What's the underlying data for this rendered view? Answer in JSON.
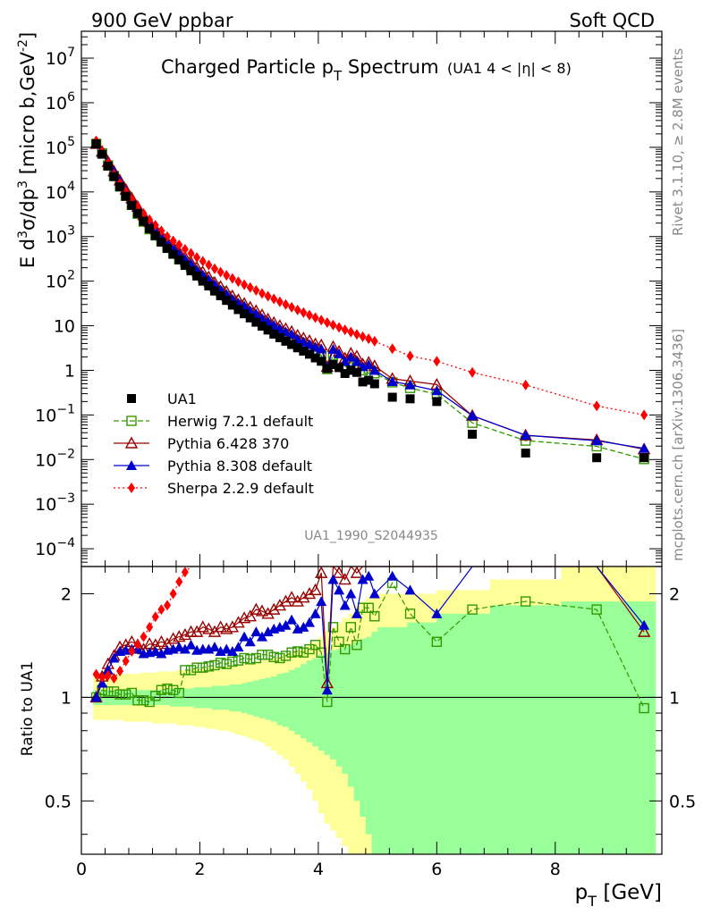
{
  "header": {
    "left": "900 GeV ppbar",
    "right": "Soft QCD",
    "side_top": "Rivet 3.1.10, ≥ 2.8M events",
    "side_bottom": "mcplots.cern.ch [arXiv:1306.3436]"
  },
  "chart_data": [
    {
      "type": "scatter",
      "title": "Charged Particle p_T Spectrum",
      "title_main": "Charged Particle p",
      "title_sub": "T",
      "title_tail": " Spectrum",
      "title_cut": "(UA1   4 < |η| < 8)",
      "analysis_label": "UA1_1990_S2044935",
      "ylabel": "E d³σ/dp³ [micro b,GeV⁻²]",
      "ylabel_parts": {
        "a": "E d",
        "b": "3",
        "c": "σ/dp",
        "d": "3",
        "e": " [micro b,GeV",
        "f": "-2",
        "g": "]"
      },
      "yscale": "log",
      "ylim": [
        4e-05,
        40000000
      ],
      "xlim": [
        0,
        9.8
      ],
      "ytick_labels": [
        {
          "v": 10000000.0,
          "base": "10",
          "exp": "7"
        },
        {
          "v": 1000000.0,
          "base": "10",
          "exp": "6"
        },
        {
          "v": 100000.0,
          "base": "10",
          "exp": "5"
        },
        {
          "v": 10000.0,
          "base": "10",
          "exp": "4"
        },
        {
          "v": 1000.0,
          "base": "10",
          "exp": "3"
        },
        {
          "v": 100.0,
          "base": "10",
          "exp": "2"
        },
        {
          "v": 10,
          "base": "10",
          "exp": ""
        },
        {
          "v": 1,
          "base": "1",
          "exp": ""
        },
        {
          "v": 0.1,
          "base": "10",
          "exp": "−1"
        },
        {
          "v": 0.01,
          "base": "10",
          "exp": "−2"
        },
        {
          "v": 0.001,
          "base": "10",
          "exp": "−3"
        },
        {
          "v": 0.0001,
          "base": "10",
          "exp": "−4"
        }
      ],
      "legend_position": "lower-left",
      "x": [
        0.25,
        0.35,
        0.45,
        0.55,
        0.65,
        0.75,
        0.85,
        0.95,
        1.05,
        1.15,
        1.25,
        1.35,
        1.45,
        1.55,
        1.65,
        1.75,
        1.85,
        1.95,
        2.05,
        2.15,
        2.25,
        2.35,
        2.45,
        2.55,
        2.65,
        2.75,
        2.85,
        2.95,
        3.05,
        3.15,
        3.25,
        3.35,
        3.45,
        3.55,
        3.65,
        3.75,
        3.85,
        3.95,
        4.05,
        4.15,
        4.25,
        4.35,
        4.45,
        4.55,
        4.65,
        4.75,
        4.85,
        4.95,
        5.25,
        5.55,
        6.0,
        6.6,
        7.5,
        8.7,
        9.5
      ],
      "series": [
        {
          "name": "UA1",
          "color": "#000000",
          "marker": "square-filled",
          "line": "none",
          "values": [
            120000,
            70000,
            38000,
            22000,
            13000,
            8000,
            5000,
            3300,
            2200,
            1500,
            1050,
            750,
            540,
            400,
            300,
            225,
            170,
            130,
            100,
            78,
            60,
            47,
            37,
            29,
            23,
            18.5,
            15,
            12,
            9.8,
            8,
            6.5,
            5.4,
            4.5,
            3.8,
            3.2,
            2.7,
            2.3,
            1.9,
            1.6,
            1.1,
            1.35,
            1.15,
            0.85,
            1.0,
            0.9,
            0.55,
            0.6,
            0.5,
            0.25,
            0.23,
            0.2,
            0.037,
            0.014,
            0.011,
            0.011
          ]
        },
        {
          "name": "Herwig 7.2.1 default",
          "color": "#339900",
          "marker": "square-open",
          "line": "dashed",
          "ratio": [
            1.0,
            1.05,
            1.04,
            1.04,
            1.02,
            1.02,
            1.03,
            0.98,
            0.98,
            0.97,
            1.01,
            1.05,
            1.06,
            1.05,
            1.03,
            1.2,
            1.2,
            1.22,
            1.22,
            1.23,
            1.24,
            1.26,
            1.25,
            1.27,
            1.28,
            1.3,
            1.29,
            1.3,
            1.33,
            1.33,
            1.31,
            1.3,
            1.32,
            1.35,
            1.36,
            1.35,
            1.38,
            1.42,
            1.35,
            0.97,
            1.6,
            1.45,
            1.38,
            1.6,
            1.42,
            1.82,
            1.82,
            1.72,
            2.15,
            1.75,
            1.45,
            1.8,
            1.9,
            1.8,
            0.93
          ]
        },
        {
          "name": "Pythia 6.428 370",
          "color": "#990000",
          "marker": "triangle-open",
          "line": "solid",
          "ratio": [
            1.0,
            1.15,
            1.25,
            1.32,
            1.4,
            1.42,
            1.45,
            1.42,
            1.38,
            1.43,
            1.42,
            1.45,
            1.43,
            1.48,
            1.5,
            1.52,
            1.55,
            1.55,
            1.6,
            1.58,
            1.55,
            1.6,
            1.58,
            1.6,
            1.65,
            1.7,
            1.72,
            1.8,
            1.78,
            1.75,
            1.8,
            1.85,
            1.9,
            1.95,
            1.9,
            1.95,
            2.0,
            2.05,
            2.3,
            1.1,
            2.5,
            2.3,
            2.2,
            2.4,
            2.3,
            2.5,
            2.5,
            2.5,
            2.6,
            2.5,
            2.4,
            2.6,
            2.5,
            2.5,
            1.55
          ]
        },
        {
          "name": "Pythia 8.308 default",
          "color": "#0000cc",
          "marker": "triangle-filled",
          "line": "solid",
          "ratio": [
            1.0,
            1.1,
            1.2,
            1.3,
            1.36,
            1.37,
            1.38,
            1.38,
            1.34,
            1.35,
            1.36,
            1.34,
            1.37,
            1.38,
            1.4,
            1.38,
            1.42,
            1.37,
            1.38,
            1.38,
            1.4,
            1.36,
            1.38,
            1.36,
            1.4,
            1.5,
            1.45,
            1.55,
            1.5,
            1.55,
            1.58,
            1.6,
            1.62,
            1.68,
            1.58,
            1.6,
            1.65,
            1.75,
            1.9,
            1.05,
            2.2,
            2.05,
            1.85,
            2.0,
            1.75,
            2.2,
            2.25,
            2.0,
            2.25,
            2.05,
            1.75,
            2.6,
            2.5,
            2.4,
            1.62
          ]
        },
        {
          "name": "Sherpa 2.2.9 default",
          "color": "#ff0000",
          "marker": "diamond-filled",
          "line": "dotted",
          "values": [
            140000,
            80000,
            44000,
            25000,
            15500,
            10200,
            6800,
            4700,
            3300,
            2400,
            1800,
            1350,
            1000,
            800,
            650,
            520,
            420,
            340,
            280,
            230,
            190,
            160,
            135,
            115,
            97,
            83,
            72,
            62,
            53,
            46,
            40,
            34.5,
            30,
            26,
            22.6,
            19.8,
            17.3,
            15.2,
            13.4,
            11.8,
            10.4,
            9.2,
            8.1,
            7.2,
            6.4,
            5.7,
            5.1,
            4.5,
            3.05,
            2.1,
            1.6,
            0.9,
            0.47,
            0.16,
            0.1
          ]
        }
      ]
    },
    {
      "type": "scatter",
      "ylabel": "Ratio to UA1",
      "xlabel": "p_T [GeV]",
      "xlabel_main": "p",
      "xlabel_sub": "T",
      "xlabel_unit": " [GeV]",
      "yscale": "log",
      "ylim": [
        0.35,
        2.4
      ],
      "xlim": [
        0,
        9.8
      ],
      "ytick_labels": [
        {
          "v": 2,
          "t": "2"
        },
        {
          "v": 1,
          "t": "1"
        },
        {
          "v": 0.5,
          "t": "0.5"
        }
      ],
      "xtick_labels": [
        {
          "v": 0,
          "t": "0"
        },
        {
          "v": 2,
          "t": "2"
        },
        {
          "v": 4,
          "t": "4"
        },
        {
          "v": 6,
          "t": "6"
        },
        {
          "v": 8,
          "t": "8"
        }
      ],
      "band_colors": {
        "stat": "#99ff99",
        "total": "#ffff99"
      },
      "band_edges": [
        0.2,
        0.3,
        0.4,
        0.5,
        0.6,
        0.7,
        0.8,
        0.9,
        1.0,
        1.1,
        1.2,
        1.3,
        1.4,
        1.5,
        1.6,
        1.7,
        1.8,
        1.9,
        2.0,
        2.1,
        2.2,
        2.3,
        2.4,
        2.5,
        2.6,
        2.7,
        2.8,
        2.9,
        3.0,
        3.1,
        3.2,
        3.3,
        3.4,
        3.5,
        3.6,
        3.7,
        3.8,
        3.9,
        4.0,
        4.1,
        4.2,
        4.3,
        4.4,
        4.5,
        4.6,
        4.7,
        4.8,
        4.9,
        5.0,
        5.5,
        6.0,
        6.9,
        8.1,
        9.2,
        9.7
      ],
      "band_total_up": [
        1.16,
        1.16,
        1.16,
        1.16,
        1.17,
        1.17,
        1.17,
        1.17,
        1.18,
        1.18,
        1.18,
        1.19,
        1.19,
        1.19,
        1.2,
        1.2,
        1.2,
        1.21,
        1.21,
        1.22,
        1.22,
        1.23,
        1.23,
        1.24,
        1.24,
        1.25,
        1.26,
        1.27,
        1.28,
        1.29,
        1.3,
        1.31,
        1.33,
        1.35,
        1.37,
        1.39,
        1.42,
        1.45,
        1.5,
        1.55,
        1.6,
        1.65,
        1.7,
        1.75,
        1.85,
        1.9,
        1.95,
        2.0,
        2.0,
        2.0,
        2.05,
        2.2,
        2.4,
        2.4
      ],
      "band_total_dn": [
        0.86,
        0.86,
        0.86,
        0.86,
        0.86,
        0.85,
        0.85,
        0.85,
        0.85,
        0.85,
        0.84,
        0.84,
        0.84,
        0.84,
        0.83,
        0.83,
        0.83,
        0.82,
        0.82,
        0.81,
        0.81,
        0.8,
        0.8,
        0.79,
        0.78,
        0.77,
        0.76,
        0.75,
        0.74,
        0.72,
        0.7,
        0.68,
        0.66,
        0.63,
        0.6,
        0.57,
        0.54,
        0.5,
        0.46,
        0.43,
        0.41,
        0.39,
        0.37,
        0.35,
        0.35,
        0.35,
        0.35,
        0.35,
        0.35,
        0.35,
        0.35,
        0.35,
        0.35,
        0.35
      ],
      "band_stat_up": [
        1.05,
        1.05,
        1.05,
        1.05,
        1.05,
        1.05,
        1.05,
        1.05,
        1.05,
        1.05,
        1.05,
        1.05,
        1.05,
        1.06,
        1.06,
        1.06,
        1.06,
        1.07,
        1.07,
        1.07,
        1.08,
        1.08,
        1.08,
        1.09,
        1.09,
        1.1,
        1.11,
        1.12,
        1.13,
        1.14,
        1.15,
        1.17,
        1.18,
        1.2,
        1.22,
        1.25,
        1.28,
        1.3,
        1.33,
        1.35,
        1.37,
        1.38,
        1.4,
        1.42,
        1.45,
        1.48,
        1.5,
        1.55,
        1.6,
        1.65,
        1.75,
        1.85,
        1.9,
        1.9
      ],
      "band_stat_dn": [
        0.95,
        0.95,
        0.95,
        0.95,
        0.95,
        0.95,
        0.95,
        0.95,
        0.95,
        0.95,
        0.95,
        0.95,
        0.95,
        0.94,
        0.94,
        0.94,
        0.94,
        0.93,
        0.93,
        0.93,
        0.92,
        0.92,
        0.92,
        0.91,
        0.91,
        0.9,
        0.89,
        0.88,
        0.87,
        0.86,
        0.85,
        0.83,
        0.82,
        0.8,
        0.78,
        0.76,
        0.74,
        0.72,
        0.7,
        0.68,
        0.66,
        0.63,
        0.6,
        0.55,
        0.5,
        0.45,
        0.4,
        0.35,
        0.35,
        0.35,
        0.35,
        0.35,
        0.35,
        0.35
      ]
    }
  ]
}
